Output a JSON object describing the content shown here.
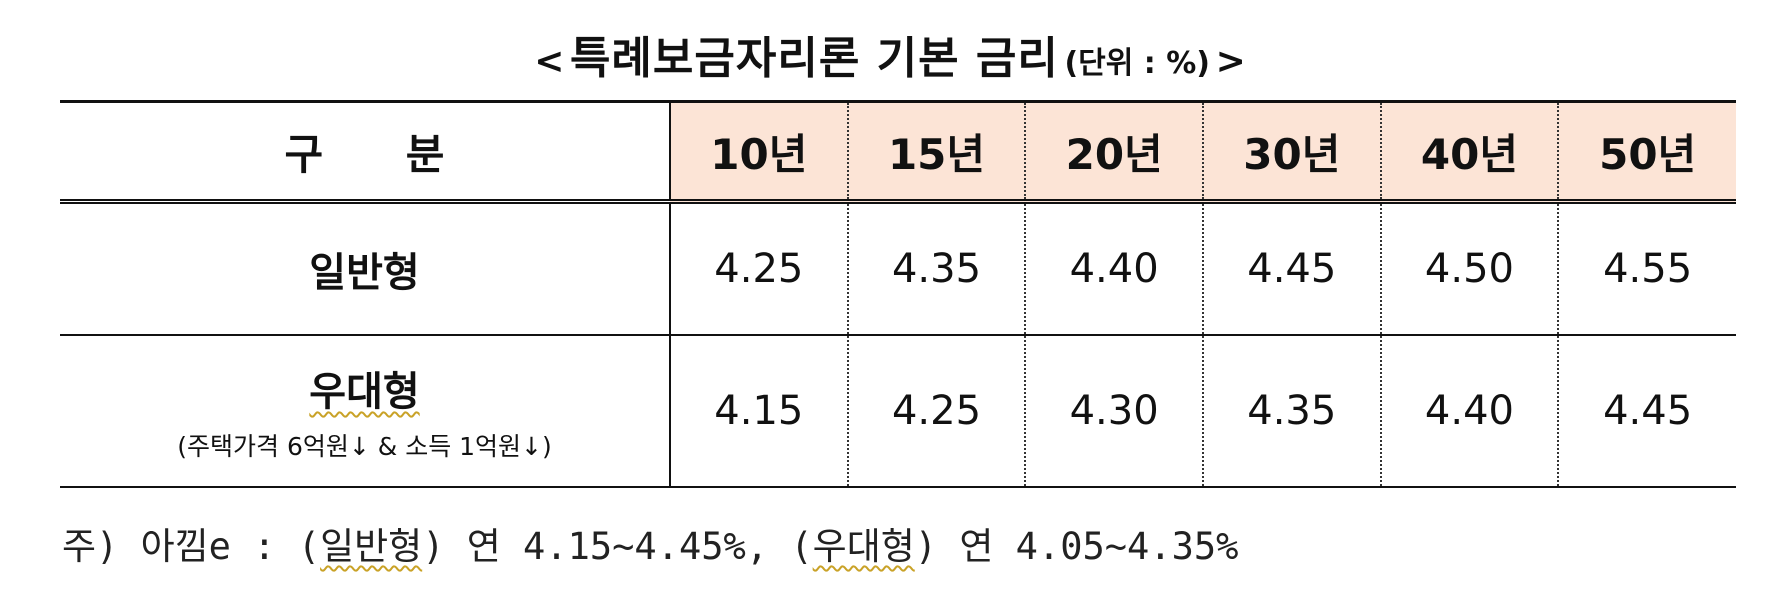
{
  "title": {
    "open": "<",
    "main": "특례보금자리론 기본 금리",
    "unit": "(단위 : %)",
    "close": ">"
  },
  "table": {
    "header_label": "구 분",
    "terms": [
      "10년",
      "15년",
      "20년",
      "30년",
      "40년",
      "50년"
    ],
    "rows": [
      {
        "name": "일반형",
        "sub": "",
        "values": [
          "4.25",
          "4.35",
          "4.40",
          "4.45",
          "4.50",
          "4.55"
        ]
      },
      {
        "name": "우대형",
        "sub": "(주택가격 6억원↓ & 소득 1억원↓)",
        "values": [
          "4.15",
          "4.25",
          "4.30",
          "4.35",
          "4.40",
          "4.45"
        ]
      }
    ]
  },
  "note": {
    "prefix": "주) 아낌e : (",
    "type1": "일반형",
    "mid1": ") 연 4.15~4.45%, (",
    "type2": "우대형",
    "mid2": ") 연 4.05~4.35%"
  },
  "colors": {
    "header_fill": "#fce4d6",
    "underline": "#c9a227"
  }
}
